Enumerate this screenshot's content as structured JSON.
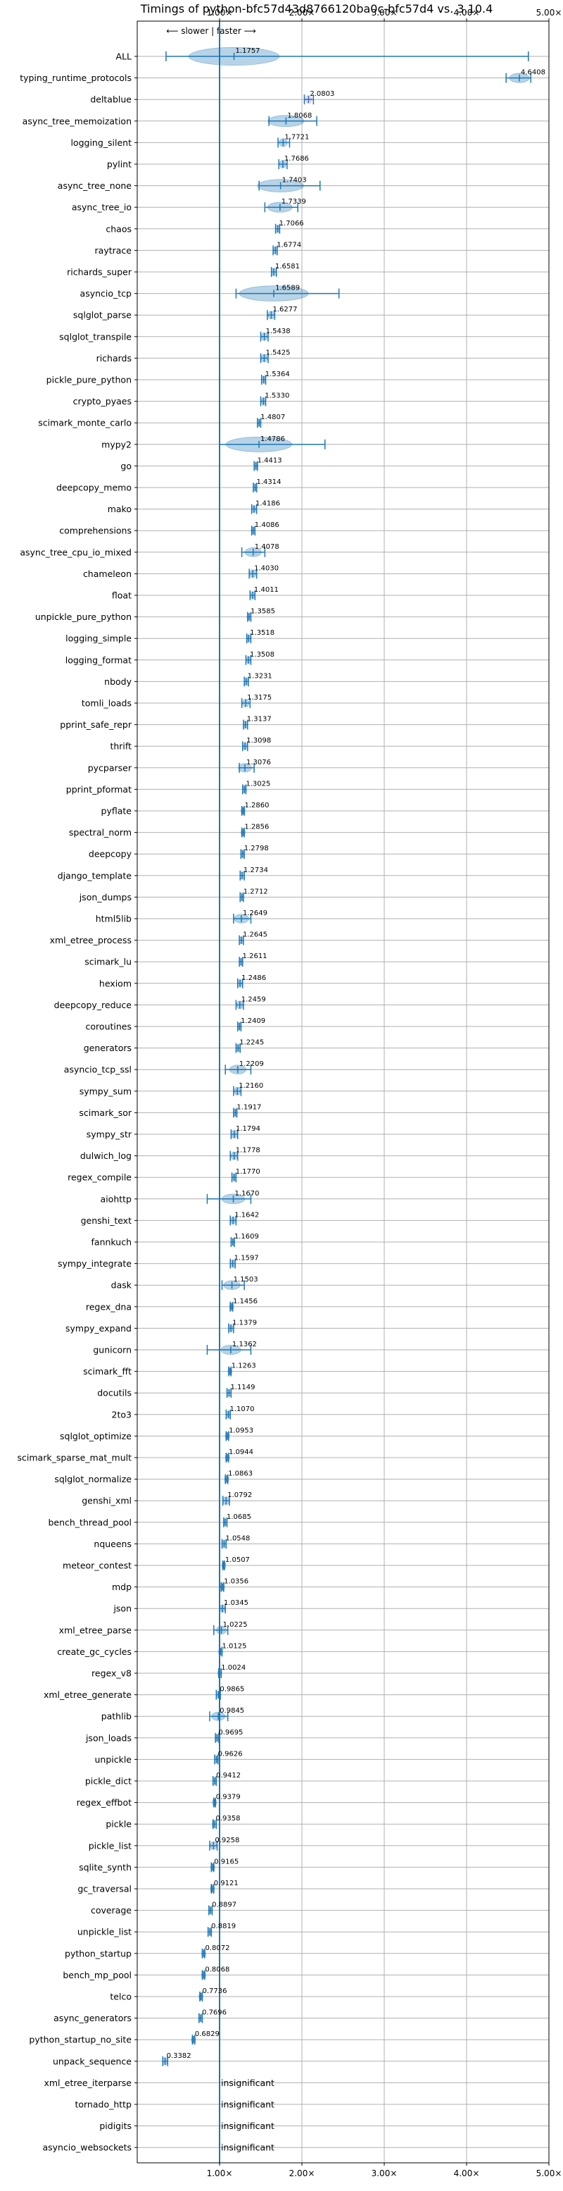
{
  "chart_data": {
    "type": "violin",
    "title": "Timings of python-bfc57d43d8766120ba0c-bfc57d4 vs. 3.10.4",
    "direction_hint": "⟵ slower | faster ⟶",
    "xlim": [
      0,
      5
    ],
    "x_ticks": [
      "1.00×",
      "2.00×",
      "3.00×",
      "4.00×",
      "5.00×"
    ],
    "x_tick_values": [
      1,
      2,
      3,
      4,
      5
    ],
    "reference_line": 1.0,
    "grid": true,
    "insignificant_label": "insignificant",
    "benchmarks": [
      {
        "name": "ALL",
        "value": 1.1757,
        "min": 0.35,
        "max": 4.75,
        "spread": 0.55
      },
      {
        "name": "typing_runtime_protocols",
        "value": 4.6408,
        "min": 4.48,
        "max": 4.78,
        "spread": 0.12
      },
      {
        "name": "deltablue",
        "value": 2.0803,
        "min": 2.03,
        "max": 2.14,
        "spread": 0.04,
        "color": "#e377c2"
      },
      {
        "name": "async_tree_memoization",
        "value": 1.8068,
        "min": 1.6,
        "max": 2.18,
        "spread": 0.22
      },
      {
        "name": "logging_silent",
        "value": 1.7721,
        "min": 1.71,
        "max": 1.85,
        "spread": 0.05
      },
      {
        "name": "pylint",
        "value": 1.7686,
        "min": 1.72,
        "max": 1.82,
        "spread": 0.04
      },
      {
        "name": "async_tree_none",
        "value": 1.7403,
        "min": 1.48,
        "max": 2.22,
        "spread": 0.28
      },
      {
        "name": "async_tree_io",
        "value": 1.7339,
        "min": 1.55,
        "max": 1.95,
        "spread": 0.15
      },
      {
        "name": "chaos",
        "value": 1.7066,
        "min": 1.68,
        "max": 1.73,
        "spread": 0.02
      },
      {
        "name": "raytrace",
        "value": 1.6774,
        "min": 1.65,
        "max": 1.7,
        "spread": 0.02
      },
      {
        "name": "richards_super",
        "value": 1.6581,
        "min": 1.63,
        "max": 1.69,
        "spread": 0.03
      },
      {
        "name": "asyncio_tcp",
        "value": 1.6589,
        "min": 1.2,
        "max": 2.45,
        "spread": 0.42
      },
      {
        "name": "sqlglot_parse",
        "value": 1.6277,
        "min": 1.58,
        "max": 1.67,
        "spread": 0.04
      },
      {
        "name": "sqlglot_transpile",
        "value": 1.5438,
        "min": 1.5,
        "max": 1.59,
        "spread": 0.04
      },
      {
        "name": "richards",
        "value": 1.5425,
        "min": 1.5,
        "max": 1.59,
        "spread": 0.04
      },
      {
        "name": "pickle_pure_python",
        "value": 1.5364,
        "min": 1.51,
        "max": 1.56,
        "spread": 0.02
      },
      {
        "name": "crypto_pyaes",
        "value": 1.533,
        "min": 1.5,
        "max": 1.56,
        "spread": 0.02
      },
      {
        "name": "scimark_monte_carlo",
        "value": 1.4807,
        "min": 1.46,
        "max": 1.5,
        "spread": 0.02
      },
      {
        "name": "mypy2",
        "value": 1.4786,
        "min": 1.0,
        "max": 2.28,
        "spread": 0.4
      },
      {
        "name": "go",
        "value": 1.4413,
        "min": 1.42,
        "max": 1.46,
        "spread": 0.02
      },
      {
        "name": "deepcopy_memo",
        "value": 1.4314,
        "min": 1.41,
        "max": 1.45,
        "spread": 0.02
      },
      {
        "name": "mako",
        "value": 1.4186,
        "min": 1.39,
        "max": 1.45,
        "spread": 0.02
      },
      {
        "name": "comprehensions",
        "value": 1.4086,
        "min": 1.39,
        "max": 1.43,
        "spread": 0.02
      },
      {
        "name": "async_tree_cpu_io_mixed",
        "value": 1.4078,
        "min": 1.27,
        "max": 1.55,
        "spread": 0.1
      },
      {
        "name": "chameleon",
        "value": 1.403,
        "min": 1.36,
        "max": 1.45,
        "spread": 0.04
      },
      {
        "name": "float",
        "value": 1.4011,
        "min": 1.37,
        "max": 1.43,
        "spread": 0.02
      },
      {
        "name": "unpickle_pure_python",
        "value": 1.3585,
        "min": 1.34,
        "max": 1.38,
        "spread": 0.02
      },
      {
        "name": "logging_simple",
        "value": 1.3518,
        "min": 1.33,
        "max": 1.38,
        "spread": 0.02
      },
      {
        "name": "logging_format",
        "value": 1.3508,
        "min": 1.32,
        "max": 1.38,
        "spread": 0.02
      },
      {
        "name": "nbody",
        "value": 1.3231,
        "min": 1.3,
        "max": 1.35,
        "spread": 0.02
      },
      {
        "name": "tomli_loads",
        "value": 1.3175,
        "min": 1.27,
        "max": 1.37,
        "spread": 0.04
      },
      {
        "name": "pprint_safe_repr",
        "value": 1.3137,
        "min": 1.29,
        "max": 1.34,
        "spread": 0.02
      },
      {
        "name": "thrift",
        "value": 1.3098,
        "min": 1.28,
        "max": 1.34,
        "spread": 0.02
      },
      {
        "name": "pycparser",
        "value": 1.3076,
        "min": 1.24,
        "max": 1.42,
        "spread": 0.08
      },
      {
        "name": "pprint_pformat",
        "value": 1.3025,
        "min": 1.28,
        "max": 1.32,
        "spread": 0.02
      },
      {
        "name": "pyflate",
        "value": 1.286,
        "min": 1.27,
        "max": 1.3,
        "spread": 0.02
      },
      {
        "name": "spectral_norm",
        "value": 1.2856,
        "min": 1.27,
        "max": 1.3,
        "spread": 0.02
      },
      {
        "name": "deepcopy",
        "value": 1.2798,
        "min": 1.26,
        "max": 1.3,
        "spread": 0.02
      },
      {
        "name": "django_template",
        "value": 1.2734,
        "min": 1.25,
        "max": 1.3,
        "spread": 0.02
      },
      {
        "name": "json_dumps",
        "value": 1.2712,
        "min": 1.25,
        "max": 1.29,
        "spread": 0.02
      },
      {
        "name": "html5lib",
        "value": 1.2649,
        "min": 1.17,
        "max": 1.38,
        "spread": 0.09
      },
      {
        "name": "xml_etree_process",
        "value": 1.2645,
        "min": 1.24,
        "max": 1.29,
        "spread": 0.02
      },
      {
        "name": "scimark_lu",
        "value": 1.2611,
        "min": 1.24,
        "max": 1.28,
        "spread": 0.02
      },
      {
        "name": "hexiom",
        "value": 1.2486,
        "min": 1.22,
        "max": 1.28,
        "spread": 0.02
      },
      {
        "name": "deepcopy_reduce",
        "value": 1.2459,
        "min": 1.2,
        "max": 1.29,
        "spread": 0.04
      },
      {
        "name": "coroutines",
        "value": 1.2409,
        "min": 1.22,
        "max": 1.26,
        "spread": 0.02
      },
      {
        "name": "generators",
        "value": 1.2245,
        "min": 1.2,
        "max": 1.25,
        "spread": 0.02
      },
      {
        "name": "asyncio_tcp_ssl",
        "value": 1.2209,
        "min": 1.07,
        "max": 1.38,
        "spread": 0.1
      },
      {
        "name": "sympy_sum",
        "value": 1.216,
        "min": 1.17,
        "max": 1.26,
        "spread": 0.04
      },
      {
        "name": "scimark_sor",
        "value": 1.1917,
        "min": 1.17,
        "max": 1.21,
        "spread": 0.02
      },
      {
        "name": "sympy_str",
        "value": 1.1794,
        "min": 1.14,
        "max": 1.22,
        "spread": 0.04
      },
      {
        "name": "dulwich_log",
        "value": 1.1778,
        "min": 1.13,
        "max": 1.22,
        "spread": 0.04
      },
      {
        "name": "regex_compile",
        "value": 1.177,
        "min": 1.15,
        "max": 1.2,
        "spread": 0.02
      },
      {
        "name": "aiohttp",
        "value": 1.167,
        "min": 0.85,
        "max": 1.38,
        "spread": 0.14
      },
      {
        "name": "genshi_text",
        "value": 1.1642,
        "min": 1.13,
        "max": 1.2,
        "spread": 0.03
      },
      {
        "name": "fannkuch",
        "value": 1.1609,
        "min": 1.14,
        "max": 1.18,
        "spread": 0.02
      },
      {
        "name": "sympy_integrate",
        "value": 1.1597,
        "min": 1.13,
        "max": 1.19,
        "spread": 0.03
      },
      {
        "name": "dask",
        "value": 1.1503,
        "min": 1.03,
        "max": 1.3,
        "spread": 0.1
      },
      {
        "name": "regex_dna",
        "value": 1.1456,
        "min": 1.13,
        "max": 1.16,
        "spread": 0.01
      },
      {
        "name": "sympy_expand",
        "value": 1.1379,
        "min": 1.11,
        "max": 1.17,
        "spread": 0.02
      },
      {
        "name": "gunicorn",
        "value": 1.1362,
        "min": 0.85,
        "max": 1.38,
        "spread": 0.12
      },
      {
        "name": "scimark_fft",
        "value": 1.1263,
        "min": 1.11,
        "max": 1.14,
        "spread": 0.01
      },
      {
        "name": "docutils",
        "value": 1.1149,
        "min": 1.09,
        "max": 1.14,
        "spread": 0.02
      },
      {
        "name": "2to3",
        "value": 1.107,
        "min": 1.08,
        "max": 1.13,
        "spread": 0.02
      },
      {
        "name": "sqlglot_optimize",
        "value": 1.0953,
        "min": 1.08,
        "max": 1.11,
        "spread": 0.01
      },
      {
        "name": "scimark_sparse_mat_mult",
        "value": 1.0944,
        "min": 1.08,
        "max": 1.11,
        "spread": 0.01
      },
      {
        "name": "sqlglot_normalize",
        "value": 1.0863,
        "min": 1.07,
        "max": 1.1,
        "spread": 0.01
      },
      {
        "name": "genshi_xml",
        "value": 1.0792,
        "min": 1.04,
        "max": 1.12,
        "spread": 0.04
      },
      {
        "name": "bench_thread_pool",
        "value": 1.0685,
        "min": 1.05,
        "max": 1.09,
        "spread": 0.02
      },
      {
        "name": "nqueens",
        "value": 1.0548,
        "min": 1.03,
        "max": 1.08,
        "spread": 0.02
      },
      {
        "name": "meteor_contest",
        "value": 1.0507,
        "min": 1.04,
        "max": 1.06,
        "spread": 0.01
      },
      {
        "name": "mdp",
        "value": 1.0356,
        "min": 1.02,
        "max": 1.05,
        "spread": 0.01
      },
      {
        "name": "json",
        "value": 1.0345,
        "min": 1.0,
        "max": 1.07,
        "spread": 0.03
      },
      {
        "name": "xml_etree_parse",
        "value": 1.0225,
        "min": 0.93,
        "max": 1.1,
        "spread": 0.06
      },
      {
        "name": "create_gc_cycles",
        "value": 1.0125,
        "min": 1.0,
        "max": 1.03,
        "spread": 0.01
      },
      {
        "name": "regex_v8",
        "value": 1.0024,
        "min": 0.99,
        "max": 1.02,
        "spread": 0.01
      },
      {
        "name": "xml_etree_generate",
        "value": 0.9865,
        "min": 0.96,
        "max": 1.01,
        "spread": 0.02
      },
      {
        "name": "pathlib",
        "value": 0.9845,
        "min": 0.88,
        "max": 1.1,
        "spread": 0.08
      },
      {
        "name": "json_loads",
        "value": 0.9695,
        "min": 0.95,
        "max": 0.99,
        "spread": 0.02
      },
      {
        "name": "unpickle",
        "value": 0.9626,
        "min": 0.94,
        "max": 0.98,
        "spread": 0.02
      },
      {
        "name": "pickle_dict",
        "value": 0.9412,
        "min": 0.92,
        "max": 0.96,
        "spread": 0.02
      },
      {
        "name": "regex_effbot",
        "value": 0.9379,
        "min": 0.93,
        "max": 0.95,
        "spread": 0.01
      },
      {
        "name": "pickle",
        "value": 0.9358,
        "min": 0.92,
        "max": 0.96,
        "spread": 0.02
      },
      {
        "name": "pickle_list",
        "value": 0.9258,
        "min": 0.88,
        "max": 0.97,
        "spread": 0.04
      },
      {
        "name": "sqlite_synth",
        "value": 0.9165,
        "min": 0.9,
        "max": 0.93,
        "spread": 0.01
      },
      {
        "name": "gc_traversal",
        "value": 0.9121,
        "min": 0.9,
        "max": 0.93,
        "spread": 0.01
      },
      {
        "name": "coverage",
        "value": 0.8897,
        "min": 0.87,
        "max": 0.91,
        "spread": 0.02
      },
      {
        "name": "unpickle_list",
        "value": 0.8819,
        "min": 0.86,
        "max": 0.9,
        "spread": 0.02
      },
      {
        "name": "python_startup",
        "value": 0.8072,
        "min": 0.79,
        "max": 0.82,
        "spread": 0.02
      },
      {
        "name": "bench_mp_pool",
        "value": 0.8068,
        "min": 0.79,
        "max": 0.82,
        "spread": 0.02
      },
      {
        "name": "telco",
        "value": 0.7736,
        "min": 0.76,
        "max": 0.79,
        "spread": 0.01
      },
      {
        "name": "async_generators",
        "value": 0.7696,
        "min": 0.75,
        "max": 0.79,
        "spread": 0.02
      },
      {
        "name": "python_startup_no_site",
        "value": 0.6829,
        "min": 0.67,
        "max": 0.7,
        "spread": 0.02
      },
      {
        "name": "unpack_sequence",
        "value": 0.3382,
        "min": 0.31,
        "max": 0.37,
        "spread": 0.03
      },
      {
        "name": "xml_etree_iterparse",
        "insignificant": true
      },
      {
        "name": "tornado_http",
        "insignificant": true
      },
      {
        "name": "pidigits",
        "insignificant": true
      },
      {
        "name": "asyncio_websockets",
        "insignificant": true
      }
    ],
    "colors": {
      "violin": "#1f77b4",
      "line": "#1f77b4",
      "grid": "#b0b0b0"
    }
  }
}
